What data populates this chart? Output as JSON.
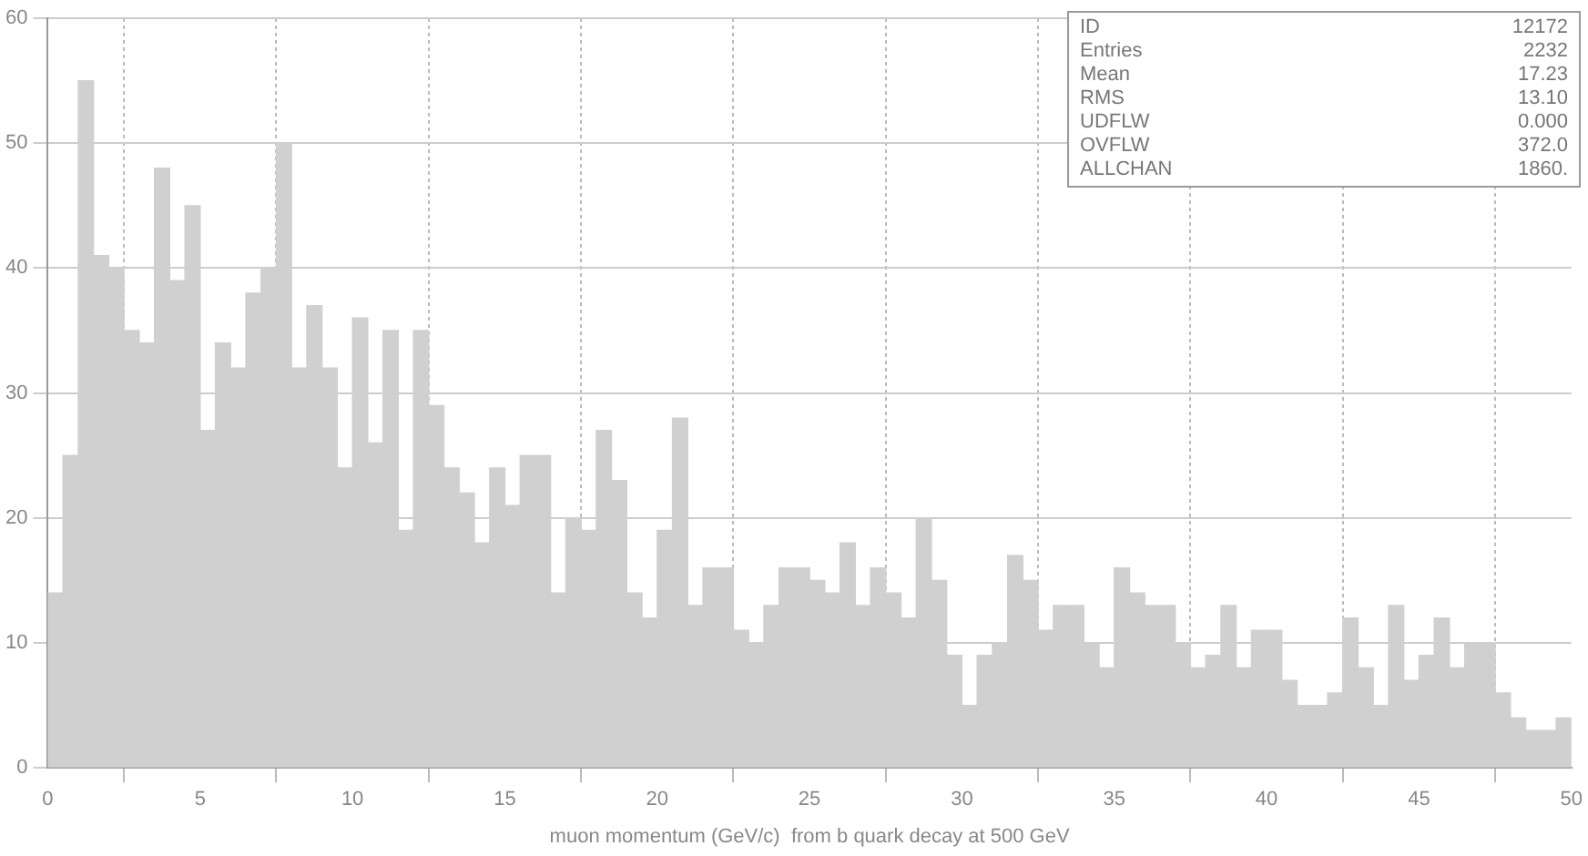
{
  "chart_data": {
    "type": "histogram",
    "xlabel": "muon momentum (GeV/c)  from b quark decay at 500 GeV",
    "bins": [
      0,
      0.5,
      1,
      1.5,
      2,
      2.5,
      3,
      3.5,
      4,
      4.5,
      5,
      5.5,
      6,
      6.5,
      7,
      7.5,
      8,
      8.5,
      9,
      9.5,
      10,
      10.5,
      11,
      11.5,
      12,
      12.5,
      13,
      13.5,
      14,
      14.5,
      15,
      15.5,
      16,
      16.5,
      17,
      17.5,
      18,
      18.5,
      19,
      19.5,
      20,
      20.5,
      21,
      21.5,
      22,
      22.5,
      23,
      23.5,
      24,
      24.5,
      25,
      25.5,
      26,
      26.5,
      27,
      27.5,
      28,
      28.5,
      29,
      29.5,
      30,
      30.5,
      31,
      31.5,
      32,
      32.5,
      33,
      33.5,
      34,
      34.5,
      35,
      35.5,
      36,
      36.5,
      37,
      37.5,
      38,
      38.5,
      39,
      39.5,
      40,
      40.5,
      41,
      41.5,
      42,
      42.5,
      43,
      43.5,
      44,
      44.5,
      45,
      45.5,
      46,
      46.5,
      47,
      47.5,
      48,
      48.5,
      49,
      49.5,
      50
    ],
    "values": [
      14,
      25,
      55,
      41,
      40,
      35,
      34,
      48,
      39,
      45,
      27,
      34,
      32,
      38,
      40,
      50,
      32,
      37,
      32,
      24,
      36,
      26,
      35,
      19,
      35,
      29,
      24,
      22,
      18,
      24,
      21,
      25,
      25,
      14,
      20,
      19,
      27,
      23,
      14,
      12,
      19,
      28,
      13,
      16,
      16,
      11,
      10,
      13,
      16,
      16,
      15,
      14,
      18,
      13,
      16,
      14,
      12,
      20,
      15,
      9,
      5,
      9,
      10,
      17,
      15,
      11,
      13,
      13,
      10,
      8,
      16,
      14,
      13,
      13,
      10,
      8,
      9,
      13,
      8,
      11,
      11,
      7,
      5,
      5,
      6,
      12,
      8,
      5,
      13,
      7,
      9,
      12,
      8,
      10,
      10,
      6,
      4,
      3,
      3,
      4
    ],
    "color": "#d0d0d0",
    "xlim": [
      0,
      50
    ],
    "ylim": [
      0,
      60
    ],
    "xticks": [
      0,
      5,
      10,
      15,
      20,
      25,
      30,
      35,
      40,
      45,
      50
    ],
    "yticks": [
      0,
      10,
      20,
      30,
      40,
      50,
      60
    ],
    "grid": true,
    "legend": false,
    "annotations": [
      "ID 12172",
      "Entries 2232",
      "Mean 17.23",
      "RMS 13.10",
      "UDFLW 0.000",
      "OVFLW 372.0",
      "ALLCHAN 1860."
    ]
  }
}
